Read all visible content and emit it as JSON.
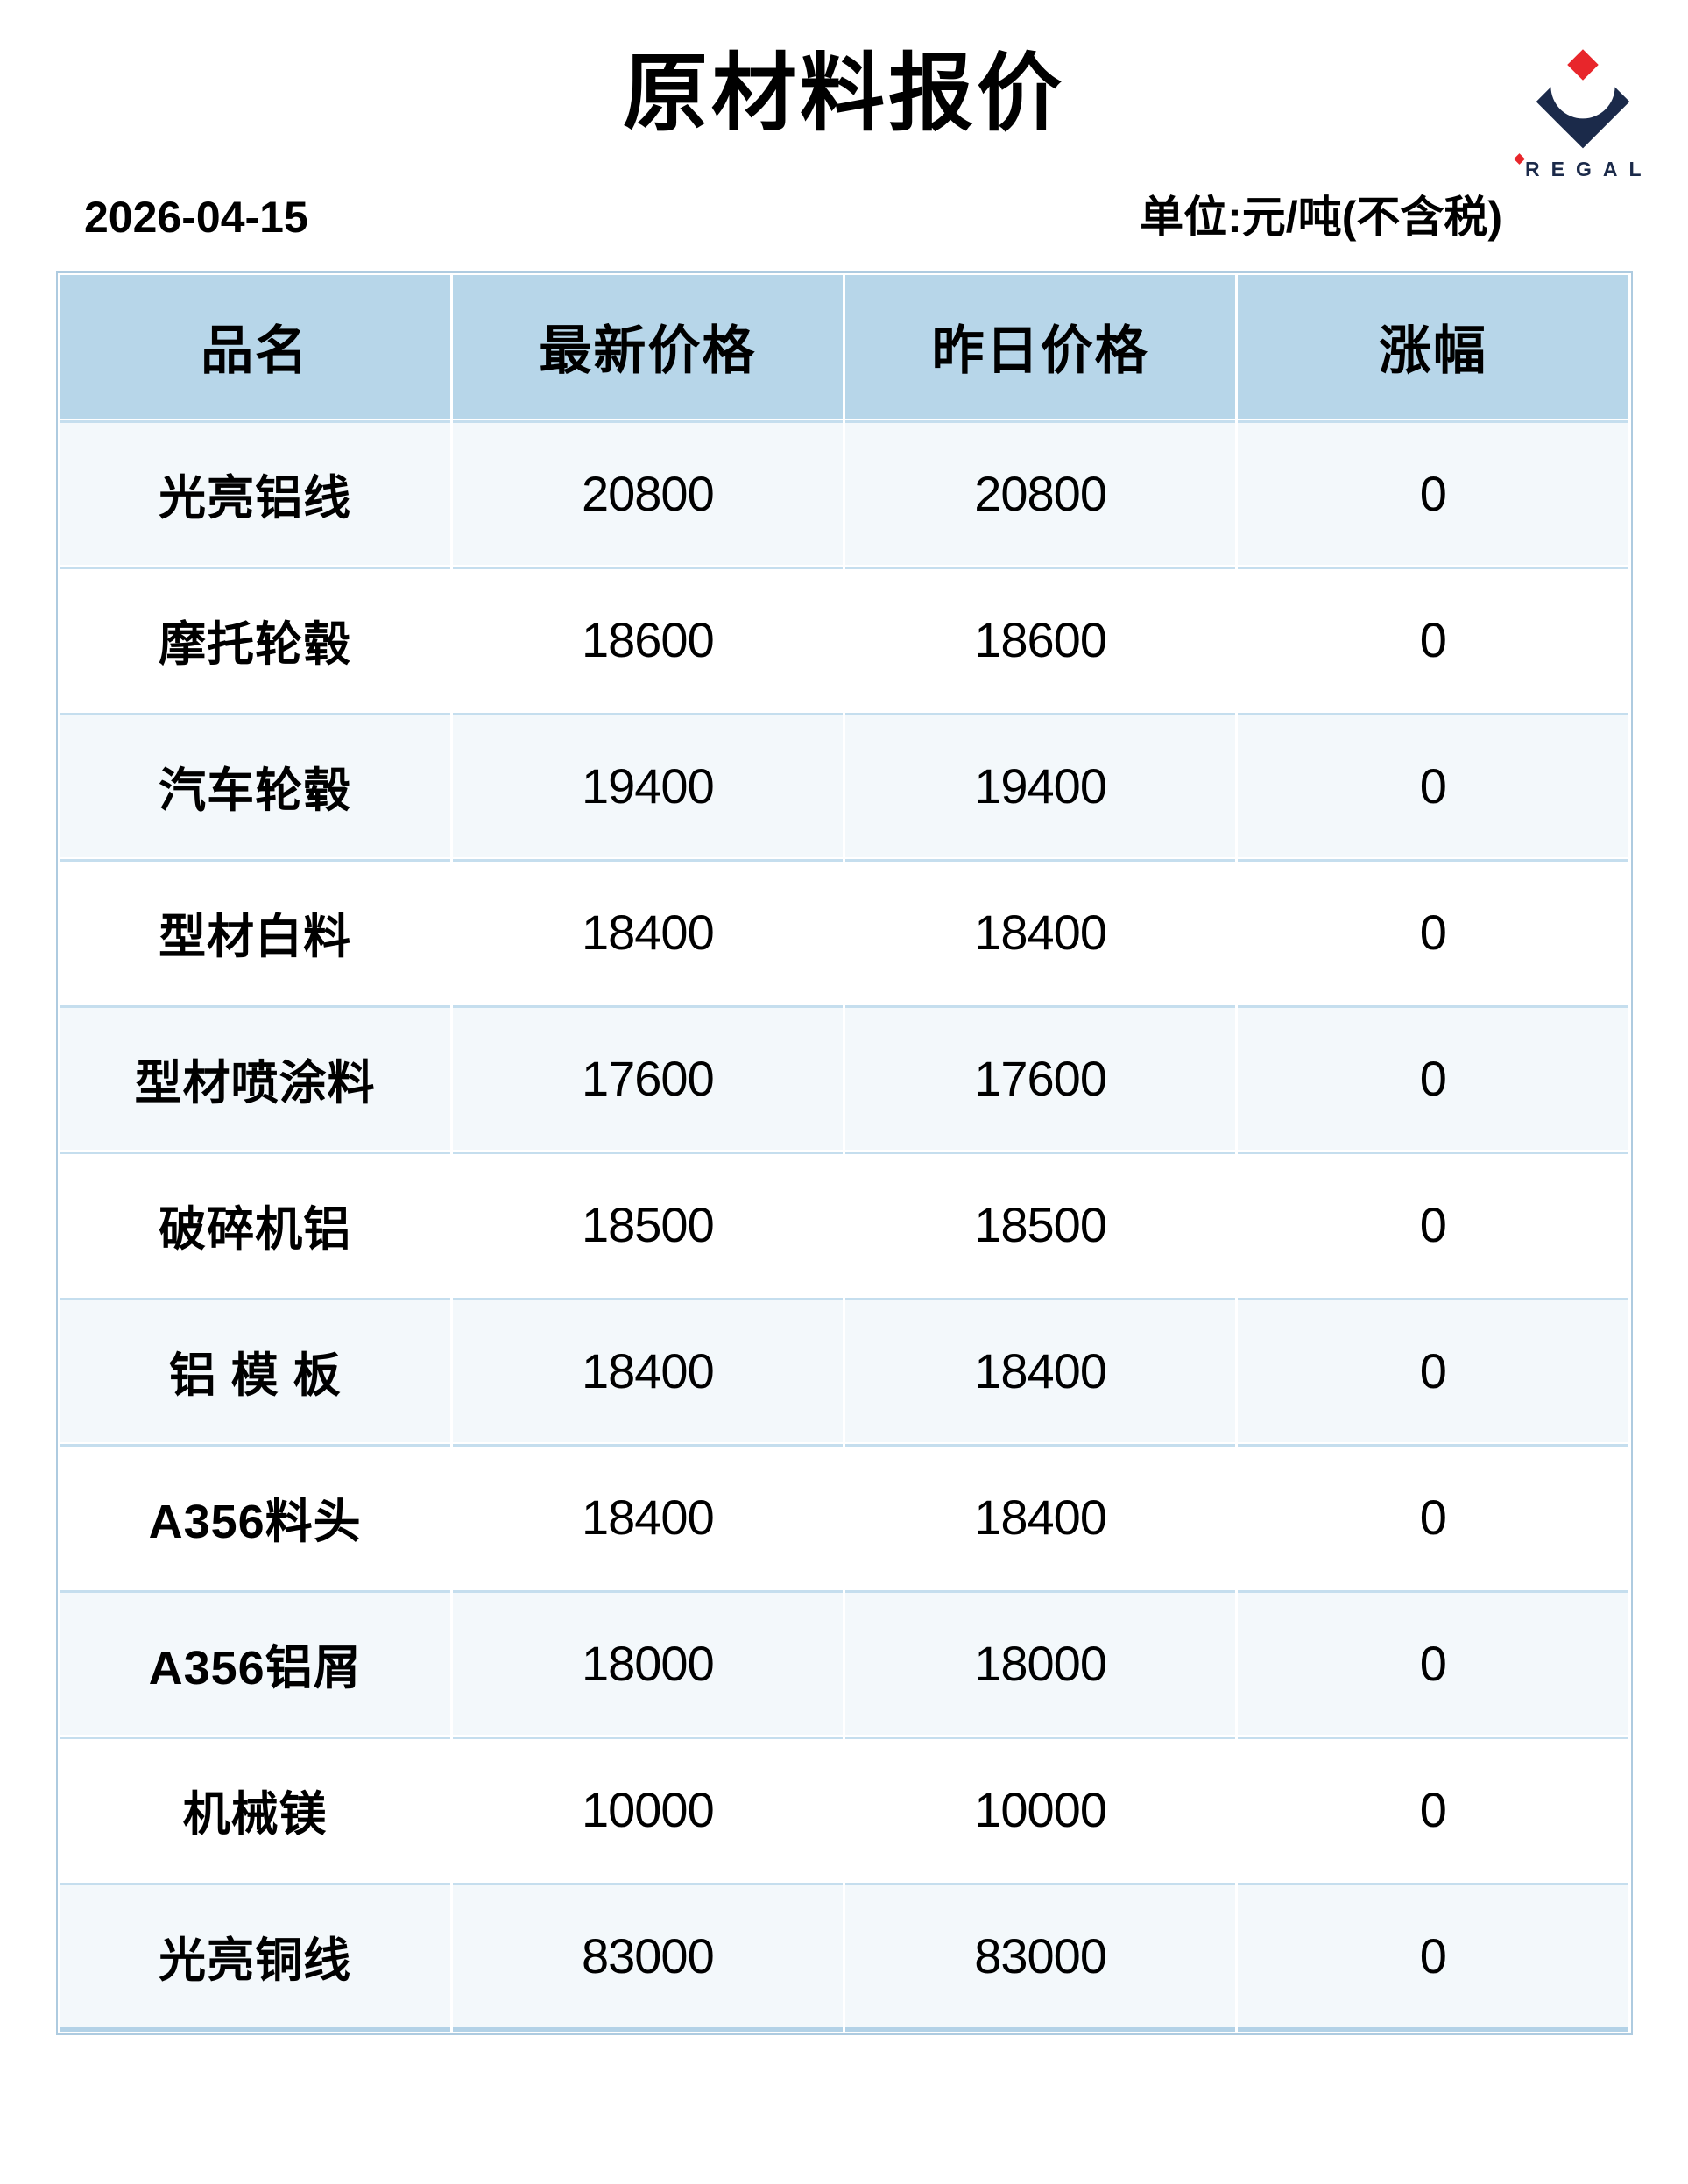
{
  "page": {
    "title": "原材料报价"
  },
  "logo": {
    "brand": "REGAL",
    "navy": "#1b2a4a",
    "red": "#e8262b"
  },
  "meta": {
    "date": "2026-04-15",
    "unit": "单位:元/吨(不含税)"
  },
  "table": {
    "headers": [
      "品名",
      "最新价格",
      "昨日价格",
      "涨幅"
    ],
    "rows": [
      {
        "name": "光亮铝线",
        "latest": "20800",
        "yesterday": "20800",
        "change": "0"
      },
      {
        "name": "摩托轮毂",
        "latest": "18600",
        "yesterday": "18600",
        "change": "0"
      },
      {
        "name": "汽车轮毂",
        "latest": "19400",
        "yesterday": "19400",
        "change": "0"
      },
      {
        "name": "型材白料",
        "latest": "18400",
        "yesterday": "18400",
        "change": "0"
      },
      {
        "name": "型材喷涂料",
        "latest": "17600",
        "yesterday": "17600",
        "change": "0"
      },
      {
        "name": "破碎机铝",
        "latest": "18500",
        "yesterday": "18500",
        "change": "0"
      },
      {
        "name": "铝 模 板",
        "latest": "18400",
        "yesterday": "18400",
        "change": "0"
      },
      {
        "name": "A356料头",
        "latest": "18400",
        "yesterday": "18400",
        "change": "0"
      },
      {
        "name": "A356铝屑",
        "latest": "18000",
        "yesterday": "18000",
        "change": "0"
      },
      {
        "name": "机械镁",
        "latest": "10000",
        "yesterday": "10000",
        "change": "0"
      },
      {
        "name": "光亮铜线",
        "latest": "83000",
        "yesterday": "83000",
        "change": "0"
      }
    ]
  },
  "colors": {
    "header_bg": "#b7d6e9",
    "row_tint": "#f3f8fb",
    "row_white": "#ffffff",
    "grid_line": "#c5deee",
    "outer_border": "#aecbe0",
    "logo_navy": "#1b2a4a",
    "logo_red": "#e8262b",
    "text": "#000000"
  }
}
